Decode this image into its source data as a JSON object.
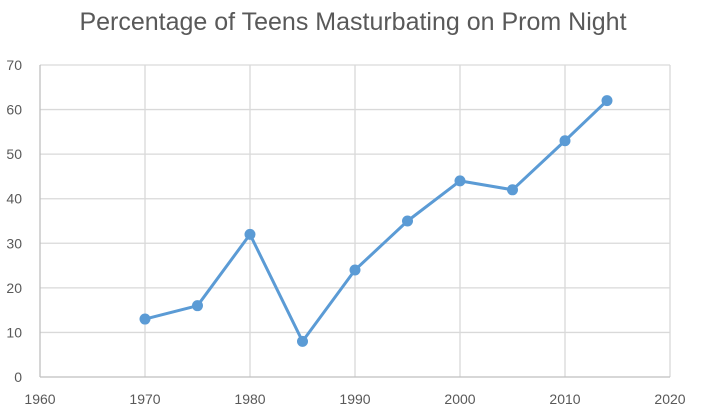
{
  "chart_data": {
    "type": "line",
    "title": "Percentage of Teens Masturbating on Prom Night",
    "xlabel": "",
    "ylabel": "",
    "xlim": [
      1960,
      2020
    ],
    "ylim": [
      0,
      70
    ],
    "x_ticks": [
      1960,
      1970,
      1980,
      1990,
      2000,
      2010,
      2020
    ],
    "y_ticks": [
      0,
      10,
      20,
      30,
      40,
      50,
      60,
      70
    ],
    "grid": true,
    "series": [
      {
        "color": "#5b9bd5",
        "x": [
          1970,
          1975,
          1980,
          1985,
          1990,
          1995,
          2000,
          2005,
          2010,
          2014
        ],
        "values": [
          13,
          16,
          32,
          8,
          24,
          35,
          44,
          42,
          53,
          62
        ]
      }
    ]
  }
}
